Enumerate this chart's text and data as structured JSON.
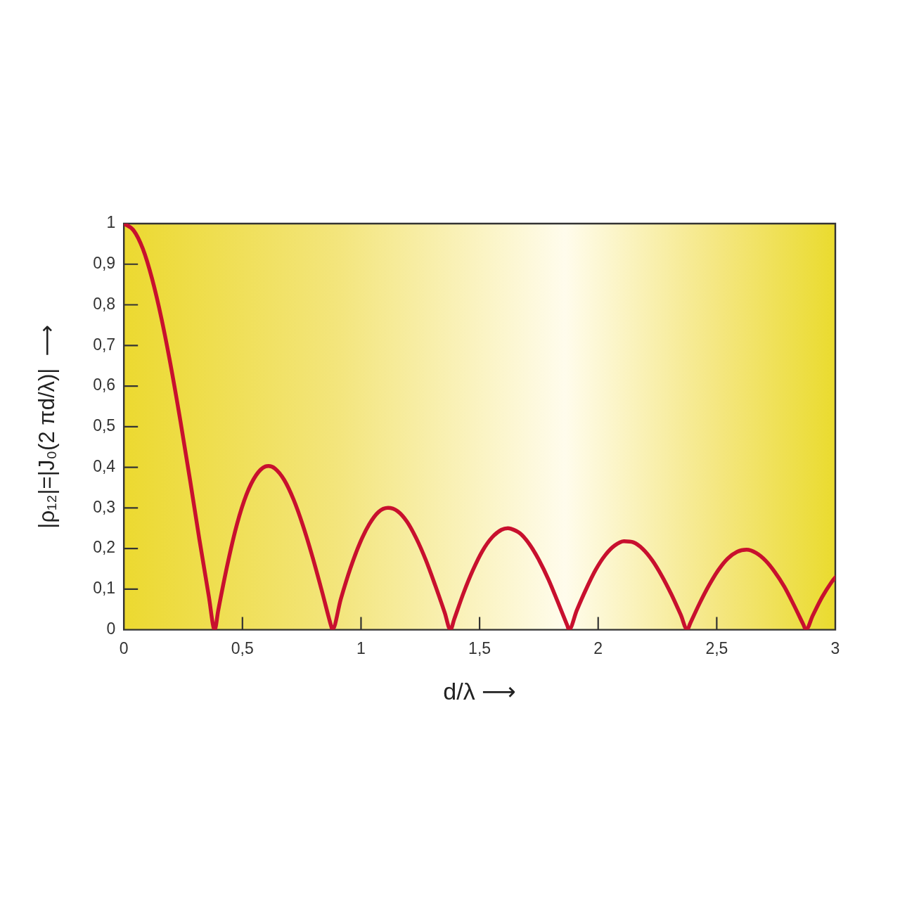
{
  "chart_data": {
    "type": "line",
    "xlabel": "d/λ ⟶",
    "ylabel": "|ρ₁₂|=|J₀(2 πd/λ)|  ⟶",
    "x": [
      0,
      0.04,
      0.08,
      0.119,
      0.159,
      0.199,
      0.239,
      0.279,
      0.318,
      0.358,
      0.383,
      0.398,
      0.438,
      0.477,
      0.517,
      0.557,
      0.597,
      0.61,
      0.637,
      0.676,
      0.716,
      0.756,
      0.796,
      0.836,
      0.875,
      0.879,
      0.915,
      0.955,
      0.995,
      1.035,
      1.074,
      1.114,
      1.154,
      1.194,
      1.233,
      1.273,
      1.313,
      1.353,
      1.377,
      1.393,
      1.432,
      1.472,
      1.512,
      1.552,
      1.592,
      1.619,
      1.631,
      1.671,
      1.711,
      1.751,
      1.791,
      1.83,
      1.87,
      1.877,
      1.91,
      1.95,
      1.989,
      2.029,
      2.069,
      2.109,
      2.149,
      2.188,
      2.228,
      2.268,
      2.308,
      2.348,
      2.376,
      2.387,
      2.427,
      2.467,
      2.507,
      2.546,
      2.586,
      2.626,
      2.666,
      2.706,
      2.745,
      2.785,
      2.825,
      2.865,
      2.876,
      2.905,
      2.944,
      2.984,
      3
    ],
    "series": [
      {
        "color": "#c8102e",
        "values": [
          1,
          0.984,
          0.938,
          0.864,
          0.765,
          0.646,
          0.512,
          0.369,
          0.224,
          0.083,
          0,
          0.048,
          0.164,
          0.26,
          0.333,
          0.38,
          0.402,
          0.403,
          0.397,
          0.369,
          0.32,
          0.255,
          0.178,
          0.093,
          0.007,
          0,
          0.076,
          0.151,
          0.213,
          0.26,
          0.29,
          0.3,
          0.292,
          0.266,
          0.225,
          0.172,
          0.109,
          0.042,
          0,
          0.026,
          0.09,
          0.147,
          0.194,
          0.227,
          0.246,
          0.25,
          0.249,
          0.237,
          0.21,
          0.171,
          0.123,
          0.068,
          0.01,
          0,
          0.048,
          0.101,
          0.147,
          0.183,
          0.207,
          0.218,
          0.215,
          0.199,
          0.171,
          0.133,
          0.088,
          0.037,
          0,
          0.014,
          0.064,
          0.109,
          0.147,
          0.175,
          0.192,
          0.197,
          0.189,
          0.17,
          0.142,
          0.106,
          0.061,
          0.013,
          0,
          0.035,
          0.08,
          0.117,
          0.129
        ]
      }
    ],
    "xlim": [
      0,
      3
    ],
    "xticks": [
      0,
      {
        "value": 0.5,
        "label": "0,5"
      },
      1,
      {
        "value": 1.5,
        "label": "1,5"
      },
      2,
      {
        "value": 2.5,
        "label": "2,5"
      },
      3
    ],
    "ylim": [
      0,
      1
    ],
    "yticks": [
      0,
      {
        "value": 0.1,
        "label": "0,1"
      },
      {
        "value": 0.2,
        "label": "0,2"
      },
      {
        "value": 0.3,
        "label": "0,3"
      },
      {
        "value": 0.4,
        "label": "0,4"
      },
      {
        "value": 0.5,
        "label": "0,5"
      },
      {
        "value": 0.6,
        "label": "0,6"
      },
      {
        "value": 0.7,
        "label": "0,7"
      },
      {
        "value": 0.8,
        "label": "0,8"
      },
      {
        "value": 0.9,
        "label": "0,9"
      },
      1
    ],
    "marker": "none",
    "line_style": "solid",
    "legend": false,
    "grid": false
  }
}
